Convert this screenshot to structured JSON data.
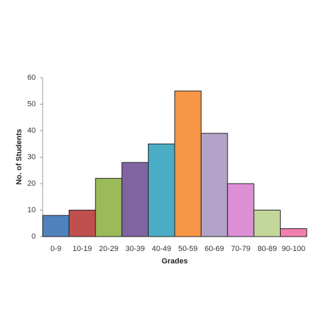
{
  "chart_data": {
    "type": "bar",
    "categories": [
      "0-9",
      "10-19",
      "20-29",
      "30-39",
      "40-49",
      "50-59",
      "60-69",
      "70-79",
      "80-89",
      "90-100"
    ],
    "values": [
      8,
      10,
      22,
      28,
      35,
      55,
      39,
      20,
      10,
      3
    ],
    "colors": [
      "#4f81bd",
      "#c0504d",
      "#9bbb59",
      "#8064a2",
      "#4bacc6",
      "#f79646",
      "#b3a2c7",
      "#dd8fd6",
      "#c4d79b",
      "#f07fb0"
    ],
    "ylim": [
      0,
      60
    ],
    "yticks": [
      0,
      10,
      20,
      30,
      40,
      50,
      60
    ],
    "xlabel": "Grades",
    "ylabel": "No. of Students",
    "grid": false
  }
}
